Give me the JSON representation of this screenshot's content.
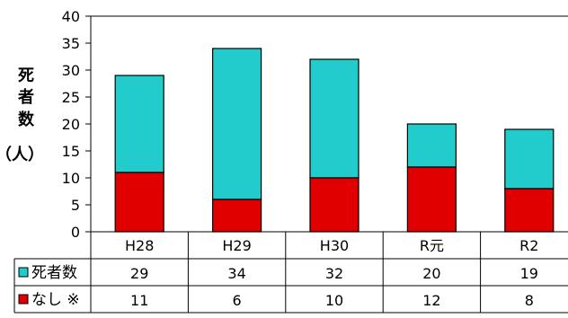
{
  "chart_data": {
    "type": "bar",
    "stacked": true,
    "categories": [
      "H28",
      "H29",
      "H30",
      "R元",
      "R2"
    ],
    "series": [
      {
        "name": "なし ※",
        "values": [
          11,
          6,
          10,
          12,
          8
        ],
        "color": "#e00000"
      },
      {
        "name": "死者数",
        "values": [
          29,
          34,
          32,
          20,
          19
        ],
        "is_total": true,
        "color": "#22cccc"
      }
    ],
    "ylabel_chars": [
      "死",
      "者",
      "数"
    ],
    "ylabel_unit": "（人）",
    "ylim": [
      0,
      40
    ],
    "yticks": [
      0,
      5,
      10,
      15,
      20,
      25,
      30,
      35,
      40
    ],
    "grid": false,
    "data_table": true,
    "table_rows": [
      {
        "label": "死者数",
        "values": [
          "29",
          "34",
          "32",
          "20",
          "19"
        ]
      },
      {
        "label": "なし ※",
        "values": [
          "11",
          "6",
          "10",
          "12",
          "8"
        ]
      }
    ]
  }
}
